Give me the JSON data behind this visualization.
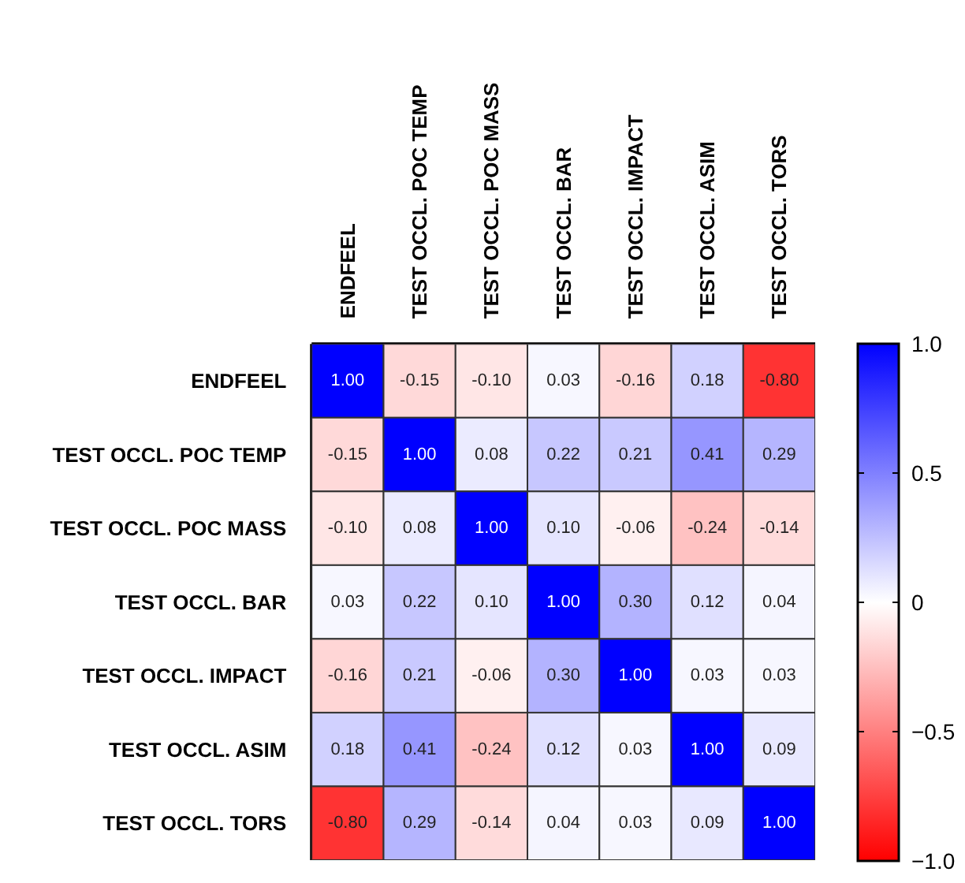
{
  "chart_data": {
    "type": "heatmap",
    "categories": [
      "ENDFEEL",
      "TEST OCCL. POC TEMP",
      "TEST OCCL. POC MASS",
      "TEST OCCL. BAR",
      "TEST OCCL. IMPACT",
      "TEST OCCL. ASIM",
      "TEST OCCL. TORS"
    ],
    "y_categories": [
      "ENDFEEL",
      "TEST OCCL. POC TEMP",
      "TEST OCCL. POC MASS",
      "TEST OCCL. BAR",
      "TEST OCCL. IMPACT",
      "TEST OCCL. ASIM",
      "TEST OCCL. TORS"
    ],
    "cells": [
      [
        1.0,
        -0.15,
        -0.1,
        0.03,
        -0.16,
        0.18,
        -0.8
      ],
      [
        -0.15,
        1.0,
        0.08,
        0.22,
        0.21,
        0.41,
        0.29
      ],
      [
        -0.1,
        0.08,
        1.0,
        0.1,
        -0.06,
        -0.24,
        -0.14
      ],
      [
        0.03,
        0.22,
        0.1,
        1.0,
        0.3,
        0.12,
        0.04
      ],
      [
        -0.16,
        0.21,
        -0.06,
        0.3,
        1.0,
        0.03,
        0.03
      ],
      [
        0.18,
        0.41,
        -0.24,
        0.12,
        0.03,
        1.0,
        0.09
      ],
      [
        -0.8,
        0.29,
        -0.14,
        0.04,
        0.03,
        0.09,
        1.0
      ]
    ],
    "cell_labels": [
      [
        "1.00",
        "-0.15",
        "-0.10",
        "0.03",
        "-0.16",
        "0.18",
        "-0.80"
      ],
      [
        "-0.15",
        "1.00",
        "0.08",
        "0.22",
        "0.21",
        "0.41",
        "0.29"
      ],
      [
        "-0.10",
        "0.08",
        "1.00",
        "0.10",
        "-0.06",
        "-0.24",
        "-0.14"
      ],
      [
        "0.03",
        "0.22",
        "0.10",
        "1.00",
        "0.30",
        "0.12",
        "0.04"
      ],
      [
        "-0.16",
        "0.21",
        "-0.06",
        "0.30",
        "1.00",
        "0.03",
        "0.03"
      ],
      [
        "0.18",
        "0.41",
        "-0.24",
        "0.12",
        "0.03",
        "1.00",
        "0.09"
      ],
      [
        "-0.80",
        "0.29",
        "-0.14",
        "0.04",
        "0.03",
        "0.09",
        "1.00"
      ]
    ],
    "clim": [
      -1.0,
      1.0
    ],
    "cticks": [
      {
        "value": 1.0,
        "label": "1.0"
      },
      {
        "value": 0.5,
        "label": "0.5"
      },
      0,
      {
        "value": -0.5,
        "label": "−0.5"
      },
      {
        "value": -1.0,
        "label": "−1.0"
      }
    ]
  }
}
